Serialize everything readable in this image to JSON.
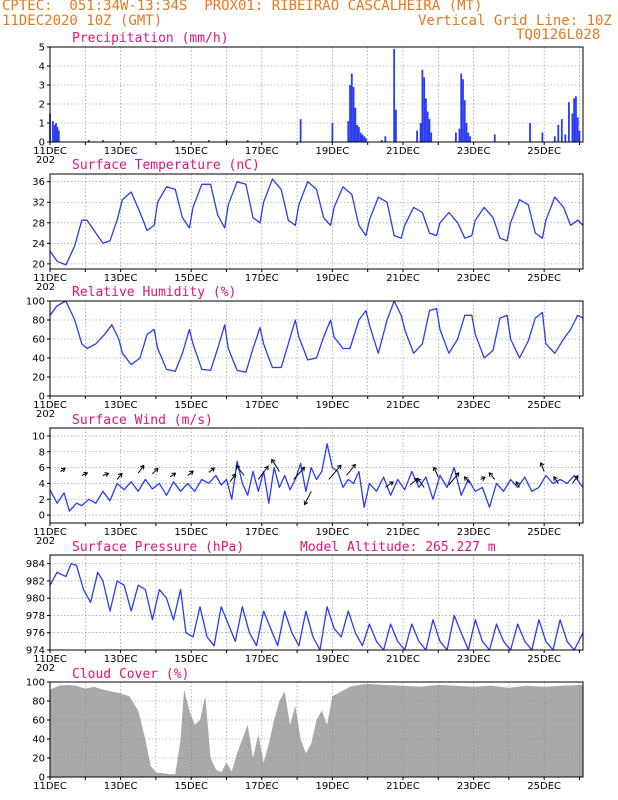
{
  "header": {
    "line1": "CPTEC:  051:34W-13:34S  PROX01: RIBEIRAO CASCALHEIRA (MT)",
    "line2_left": "11DEC2020 10Z (GMT)",
    "line2_right": "Vertical Grid Line: 10Z",
    "line3_right": "TQ0126L028"
  },
  "colors": {
    "header": "#e8781c",
    "title": "#e0147a",
    "series": "#2a3cf0",
    "cloud": "#a9a9a9"
  },
  "x_axis": {
    "labels": [
      "11DEC",
      "13DEC",
      "15DEC",
      "17DEC",
      "19DEC",
      "21DEC",
      "23DEC",
      "25DEC"
    ],
    "year_fragment": "202",
    "start_day": 11,
    "end_day": 26.1
  },
  "chart_data": [
    {
      "id": "precip",
      "type": "bar",
      "title": "Precipitation (mm/h)",
      "ylim": [
        0,
        5
      ],
      "yticks": [
        0,
        1,
        2,
        3,
        4,
        5
      ],
      "x": [
        11.0,
        11.08,
        11.13,
        11.17,
        11.21,
        11.25,
        12.1,
        12.5,
        14.5,
        15.5,
        16.0,
        16.6,
        18.1,
        19.0,
        19.45,
        19.5,
        19.55,
        19.6,
        19.65,
        19.7,
        19.75,
        19.8,
        19.85,
        19.9,
        19.95,
        20.4,
        20.5,
        20.75,
        20.8,
        21.4,
        21.5,
        21.55,
        21.6,
        21.65,
        21.7,
        21.75,
        21.8,
        22.5,
        22.6,
        22.65,
        22.7,
        22.75,
        22.8,
        22.85,
        22.9,
        23.6,
        24.6,
        24.95,
        25.3,
        25.4,
        25.5,
        25.6,
        25.7,
        25.8,
        25.85,
        25.9,
        25.95,
        26.0
      ],
      "values": [
        1.5,
        1.1,
        0.9,
        1.0,
        0.8,
        0.6,
        0.1,
        0.1,
        0.1,
        0.1,
        0.1,
        0.1,
        1.2,
        1.0,
        1.1,
        3.0,
        3.6,
        2.9,
        1.8,
        0.9,
        0.8,
        0.5,
        0.4,
        0.3,
        0.2,
        0.1,
        0.3,
        4.9,
        1.7,
        0.6,
        1.0,
        3.8,
        3.4,
        2.3,
        1.6,
        1.2,
        0.5,
        0.5,
        0.7,
        3.6,
        3.3,
        2.2,
        1.0,
        0.5,
        0.3,
        0.4,
        1.0,
        0.5,
        0.3,
        0.9,
        1.2,
        0.4,
        2.1,
        1.5,
        2.3,
        2.4,
        1.3,
        0.6
      ]
    },
    {
      "id": "temp",
      "type": "line",
      "title": "Surface Temperature (nC)",
      "ylim": [
        19,
        37.5
      ],
      "yticks": [
        20,
        24,
        28,
        32,
        36
      ],
      "x": [
        11.0,
        11.2,
        11.45,
        11.7,
        11.9,
        12.05,
        12.3,
        12.5,
        12.7,
        12.9,
        13.05,
        13.3,
        13.55,
        13.75,
        13.95,
        14.05,
        14.3,
        14.55,
        14.75,
        14.95,
        15.05,
        15.3,
        15.55,
        15.75,
        15.95,
        16.05,
        16.3,
        16.55,
        16.75,
        16.95,
        17.05,
        17.3,
        17.55,
        17.75,
        17.95,
        18.05,
        18.3,
        18.55,
        18.75,
        18.95,
        19.05,
        19.3,
        19.55,
        19.75,
        19.95,
        20.05,
        20.3,
        20.55,
        20.75,
        20.95,
        21.05,
        21.3,
        21.55,
        21.75,
        21.95,
        22.05,
        22.3,
        22.55,
        22.75,
        22.95,
        23.05,
        23.3,
        23.55,
        23.75,
        23.95,
        24.05,
        24.3,
        24.55,
        24.75,
        24.95,
        25.05,
        25.3,
        25.55,
        25.75,
        25.95,
        26.1
      ],
      "values": [
        22.5,
        20.5,
        19.8,
        23.5,
        28.5,
        28.5,
        26.0,
        24.0,
        24.5,
        28.5,
        32.5,
        34.0,
        30.0,
        26.5,
        27.5,
        32.0,
        35.0,
        34.5,
        29.0,
        27.0,
        31.0,
        35.5,
        35.5,
        29.5,
        27.0,
        31.5,
        36.0,
        35.5,
        29.0,
        28.0,
        32.0,
        36.5,
        34.5,
        28.5,
        27.5,
        31.5,
        36.0,
        34.5,
        29.0,
        27.5,
        31.0,
        35.0,
        33.5,
        27.5,
        25.5,
        28.5,
        33.0,
        32.0,
        25.5,
        25.0,
        27.5,
        31.0,
        30.0,
        26.0,
        25.5,
        28.0,
        30.0,
        28.0,
        25.0,
        25.5,
        28.5,
        31.0,
        29.0,
        25.0,
        24.5,
        28.0,
        32.5,
        31.5,
        26.0,
        25.0,
        28.5,
        33.0,
        31.0,
        27.5,
        28.5,
        27.5
      ]
    },
    {
      "id": "rh",
      "type": "line",
      "title": "Relative Humidity (%)",
      "ylim": [
        0,
        100
      ],
      "yticks": [
        0,
        20,
        40,
        60,
        80,
        100
      ],
      "x": [
        11.0,
        11.2,
        11.45,
        11.7,
        11.9,
        12.05,
        12.3,
        12.55,
        12.75,
        12.95,
        13.05,
        13.3,
        13.55,
        13.75,
        13.95,
        14.05,
        14.3,
        14.55,
        14.75,
        14.95,
        15.05,
        15.3,
        15.55,
        15.75,
        15.95,
        16.05,
        16.3,
        16.55,
        16.75,
        16.95,
        17.05,
        17.3,
        17.55,
        17.75,
        17.95,
        18.05,
        18.3,
        18.55,
        18.75,
        18.95,
        19.05,
        19.3,
        19.5,
        19.75,
        19.95,
        20.05,
        20.3,
        20.55,
        20.75,
        20.95,
        21.05,
        21.3,
        21.55,
        21.75,
        21.95,
        22.05,
        22.3,
        22.55,
        22.75,
        22.95,
        23.05,
        23.3,
        23.55,
        23.75,
        23.95,
        24.05,
        24.3,
        24.55,
        24.75,
        24.95,
        25.05,
        25.3,
        25.55,
        25.75,
        25.95,
        26.1
      ],
      "values": [
        85,
        95,
        100,
        80,
        55,
        50,
        55,
        65,
        75,
        60,
        45,
        33,
        40,
        65,
        70,
        50,
        28,
        26,
        45,
        70,
        55,
        28,
        27,
        50,
        75,
        50,
        27,
        25,
        50,
        72,
        55,
        30,
        30,
        55,
        80,
        62,
        38,
        40,
        62,
        80,
        62,
        50,
        50,
        80,
        90,
        75,
        45,
        80,
        100,
        85,
        70,
        45,
        55,
        90,
        92,
        70,
        45,
        60,
        85,
        85,
        65,
        40,
        48,
        82,
        85,
        60,
        40,
        58,
        82,
        88,
        55,
        45,
        60,
        70,
        85,
        82
      ]
    },
    {
      "id": "wind",
      "type": "line",
      "title": "Surface Wind (m/s)",
      "ylim": [
        -1,
        11
      ],
      "yticks": [
        0,
        2,
        4,
        6,
        8,
        10
      ],
      "x": [
        11.0,
        11.2,
        11.4,
        11.55,
        11.75,
        11.9,
        12.1,
        12.3,
        12.5,
        12.7,
        12.9,
        13.1,
        13.3,
        13.5,
        13.7,
        13.9,
        14.1,
        14.3,
        14.5,
        14.7,
        14.9,
        15.1,
        15.3,
        15.5,
        15.7,
        15.85,
        16.0,
        16.15,
        16.3,
        16.45,
        16.6,
        16.75,
        16.9,
        17.05,
        17.2,
        17.35,
        17.5,
        17.65,
        17.8,
        17.95,
        18.1,
        18.25,
        18.4,
        18.55,
        18.7,
        18.85,
        19.0,
        19.15,
        19.3,
        19.45,
        19.6,
        19.75,
        19.9,
        20.05,
        20.25,
        20.45,
        20.65,
        20.85,
        21.05,
        21.25,
        21.45,
        21.65,
        21.85,
        22.05,
        22.25,
        22.45,
        22.65,
        22.85,
        23.05,
        23.25,
        23.45,
        23.65,
        23.85,
        24.05,
        24.25,
        24.45,
        24.65,
        24.85,
        25.05,
        25.25,
        25.45,
        25.65,
        25.85,
        26.1
      ],
      "values": [
        3.2,
        1.5,
        2.8,
        0.5,
        1.5,
        1.2,
        2.0,
        1.5,
        3.0,
        1.8,
        4.0,
        3.2,
        4.2,
        3.0,
        4.5,
        3.3,
        4.0,
        2.5,
        4.2,
        3.0,
        4.0,
        3.0,
        4.5,
        4.0,
        5.0,
        3.8,
        4.5,
        2.0,
        6.8,
        4.0,
        2.5,
        5.5,
        3.0,
        5.5,
        1.5,
        6.0,
        3.5,
        5.0,
        3.2,
        4.5,
        6.5,
        3.0,
        6.0,
        4.5,
        5.5,
        9.0,
        6.0,
        5.5,
        3.5,
        4.5,
        4.0,
        5.5,
        1.0,
        4.0,
        3.0,
        4.8,
        2.5,
        4.5,
        3.2,
        5.5,
        3.5,
        4.8,
        2.0,
        5.0,
        3.5,
        6.0,
        2.5,
        4.5,
        3.0,
        3.5,
        1.0,
        4.0,
        3.0,
        4.5,
        3.5,
        4.8,
        3.0,
        3.5,
        5.0,
        4.0,
        4.5,
        4.0,
        5.0,
        3.5
      ],
      "vectors": [
        {
          "x": 11.3,
          "y": 5.5,
          "u": 0.2,
          "v": 0.15
        },
        {
          "x": 11.9,
          "y": 5.0,
          "u": 0.25,
          "v": 0.12
        },
        {
          "x": 12.5,
          "y": 5.0,
          "u": 0.25,
          "v": 0.1
        },
        {
          "x": 12.9,
          "y": 4.5,
          "u": 0.22,
          "v": 0.28
        },
        {
          "x": 13.5,
          "y": 5.3,
          "u": 0.25,
          "v": 0.35
        },
        {
          "x": 13.9,
          "y": 5.2,
          "u": 0.25,
          "v": 0.25
        },
        {
          "x": 14.4,
          "y": 4.8,
          "u": 0.25,
          "v": 0.18
        },
        {
          "x": 14.9,
          "y": 5.0,
          "u": 0.25,
          "v": 0.2
        },
        {
          "x": 15.5,
          "y": 5.4,
          "u": 0.25,
          "v": 0.2
        },
        {
          "x": 16.1,
          "y": 4.2,
          "u": 0.25,
          "v": 0.35
        },
        {
          "x": 16.5,
          "y": 5.0,
          "u": -0.35,
          "v": 0.45
        },
        {
          "x": 16.9,
          "y": 4.5,
          "u": 0.45,
          "v": 0.6
        },
        {
          "x": 17.5,
          "y": 5.5,
          "u": -0.35,
          "v": 0.55
        },
        {
          "x": 17.9,
          "y": 4.5,
          "u": 0.5,
          "v": 0.55
        },
        {
          "x": 18.4,
          "y": 3.0,
          "u": -0.3,
          "v": -0.6
        },
        {
          "x": 18.9,
          "y": 4.5,
          "u": 0.55,
          "v": 0.65
        },
        {
          "x": 19.4,
          "y": 5.0,
          "u": 0.4,
          "v": 0.5
        },
        {
          "x": 20.5,
          "y": 3.5,
          "u": 0.35,
          "v": 0.25
        },
        {
          "x": 21.2,
          "y": 3.8,
          "u": 0.35,
          "v": 0.3
        },
        {
          "x": 21.6,
          "y": 3.5,
          "u": -0.3,
          "v": 0.4
        },
        {
          "x": 22.0,
          "y": 4.8,
          "u": -0.2,
          "v": 0.45
        },
        {
          "x": 22.3,
          "y": 3.8,
          "u": 0.45,
          "v": 0.55
        },
        {
          "x": 22.9,
          "y": 4.0,
          "u": -0.25,
          "v": 0.3
        },
        {
          "x": 23.2,
          "y": 4.5,
          "u": 0.2,
          "v": 0.1
        },
        {
          "x": 23.6,
          "y": 4.5,
          "u": -0.25,
          "v": 0.3
        },
        {
          "x": 24.3,
          "y": 3.5,
          "u": -0.15,
          "v": 0.25
        },
        {
          "x": 25.0,
          "y": 5.5,
          "u": -0.15,
          "v": 0.4
        },
        {
          "x": 25.4,
          "y": 4.0,
          "u": -0.2,
          "v": 0.3
        },
        {
          "x": 25.8,
          "y": 4.0,
          "u": 0.25,
          "v": 0.35
        }
      ]
    },
    {
      "id": "pres",
      "type": "line",
      "title": "Surface Pressure (hPa)",
      "annotation": "Model Altitude: 265.227 m",
      "ylim": [
        974,
        985
      ],
      "yticks": [
        974,
        976,
        978,
        980,
        982,
        984
      ],
      "x": [
        11.0,
        11.2,
        11.45,
        11.6,
        11.75,
        11.95,
        12.15,
        12.35,
        12.5,
        12.7,
        12.9,
        13.1,
        13.3,
        13.5,
        13.7,
        13.9,
        14.1,
        14.3,
        14.5,
        14.7,
        14.85,
        15.05,
        15.25,
        15.45,
        15.65,
        15.85,
        16.05,
        16.25,
        16.45,
        16.65,
        16.85,
        17.05,
        17.25,
        17.45,
        17.65,
        17.85,
        18.05,
        18.25,
        18.45,
        18.65,
        18.85,
        19.05,
        19.25,
        19.45,
        19.65,
        19.85,
        20.05,
        20.25,
        20.45,
        20.65,
        20.85,
        21.05,
        21.25,
        21.45,
        21.65,
        21.85,
        22.05,
        22.25,
        22.45,
        22.65,
        22.85,
        23.05,
        23.25,
        23.45,
        23.65,
        23.85,
        24.05,
        24.25,
        24.45,
        24.65,
        24.85,
        25.05,
        25.25,
        25.45,
        25.65,
        25.85,
        26.1
      ],
      "values": [
        981.5,
        983.0,
        982.5,
        984.0,
        983.8,
        981.0,
        979.5,
        983.0,
        982.0,
        978.5,
        982.0,
        981.5,
        978.5,
        981.5,
        981.0,
        977.5,
        981.0,
        980.0,
        977.5,
        981.0,
        976.0,
        975.5,
        979.0,
        975.5,
        974.5,
        979.0,
        977.0,
        975.0,
        979.0,
        976.0,
        974.5,
        978.5,
        976.5,
        974.5,
        978.5,
        976.0,
        974.5,
        978.5,
        975.5,
        974.0,
        979.0,
        976.5,
        975.5,
        978.5,
        976.0,
        974.5,
        977.0,
        975.0,
        974.0,
        977.0,
        975.0,
        974.0,
        977.0,
        975.0,
        974.0,
        977.5,
        975.0,
        974.0,
        978.0,
        976.0,
        974.0,
        977.5,
        975.0,
        974.0,
        977.0,
        975.0,
        974.0,
        977.0,
        975.0,
        974.0,
        977.5,
        975.0,
        974.0,
        977.5,
        975.0,
        974.0,
        976.0
      ]
    },
    {
      "id": "cloud",
      "type": "area",
      "title": "Cloud Cover (%)",
      "ylim": [
        0,
        100
      ],
      "yticks": [
        0,
        20,
        40,
        60,
        80,
        100
      ],
      "x": [
        11.0,
        11.25,
        11.5,
        11.75,
        12.0,
        12.25,
        12.5,
        12.75,
        13.0,
        13.25,
        13.5,
        13.7,
        13.85,
        14.0,
        14.2,
        14.4,
        14.55,
        14.7,
        14.8,
        14.95,
        15.1,
        15.25,
        15.4,
        15.55,
        15.7,
        15.85,
        16.0,
        16.15,
        16.3,
        16.45,
        16.6,
        16.75,
        16.9,
        17.05,
        17.2,
        17.35,
        17.5,
        17.65,
        17.8,
        17.95,
        18.1,
        18.25,
        18.4,
        18.55,
        18.7,
        18.85,
        19.0,
        19.25,
        19.5,
        19.75,
        20.0,
        20.5,
        21.0,
        21.5,
        22.0,
        22.5,
        23.0,
        23.5,
        24.0,
        24.5,
        25.0,
        25.5,
        26.1
      ],
      "values": [
        92,
        96,
        97,
        96,
        93,
        95,
        92,
        90,
        88,
        85,
        70,
        40,
        12,
        5,
        4,
        3,
        3,
        40,
        92,
        70,
        55,
        60,
        85,
        20,
        8,
        5,
        15,
        6,
        25,
        40,
        55,
        20,
        45,
        15,
        35,
        60,
        80,
        90,
        55,
        75,
        40,
        25,
        35,
        60,
        70,
        55,
        85,
        90,
        95,
        97,
        98,
        97,
        96,
        95,
        97,
        96,
        95,
        96,
        94,
        96,
        95,
        96,
        97
      ]
    }
  ]
}
